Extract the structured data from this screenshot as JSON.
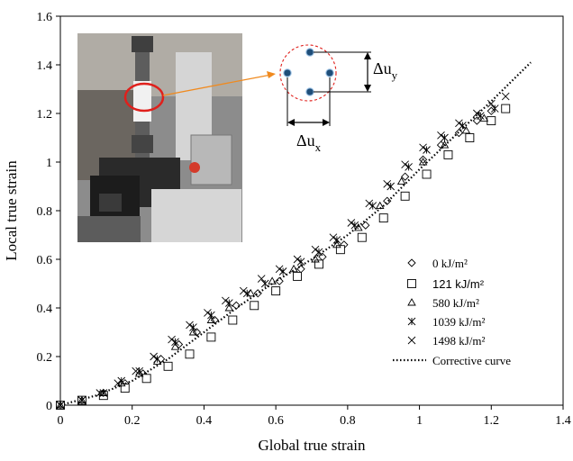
{
  "chart_data": {
    "type": "scatter",
    "xlabel": "Global  true strain",
    "ylabel": "Local true strain",
    "xlim": [
      0,
      1.4
    ],
    "ylim": [
      0,
      1.6
    ],
    "x_ticks": [
      "0",
      "0.2",
      "0.4",
      "0.6",
      "0.8",
      "1",
      "1.2",
      "1.4"
    ],
    "y_ticks": [
      "0",
      "0.2",
      "0.4",
      "0.6",
      "0.8",
      "1",
      "1.2",
      "1.4",
      "1.6"
    ],
    "grid": false,
    "legend_position": "bottom-right",
    "series": [
      {
        "name": "0 kJ/m²",
        "marker": "diamond",
        "x": [
          0,
          0.06,
          0.12,
          0.18,
          0.23,
          0.28,
          0.33,
          0.38,
          0.43,
          0.49,
          0.55,
          0.61,
          0.67,
          0.73,
          0.79,
          0.85,
          0.91,
          0.96,
          1.01,
          1.06,
          1.11,
          1.16,
          1.2
        ],
        "y": [
          0,
          0.02,
          0.05,
          0.09,
          0.13,
          0.19,
          0.25,
          0.3,
          0.35,
          0.41,
          0.46,
          0.51,
          0.56,
          0.61,
          0.66,
          0.74,
          0.84,
          0.94,
          1.01,
          1.07,
          1.12,
          1.17,
          1.21
        ]
      },
      {
        "name": "121 kJ/m²",
        "marker": "square",
        "x": [
          0,
          0.06,
          0.12,
          0.18,
          0.24,
          0.3,
          0.36,
          0.42,
          0.48,
          0.54,
          0.6,
          0.66,
          0.72,
          0.78,
          0.84,
          0.9,
          0.96,
          1.02,
          1.08,
          1.14,
          1.2,
          1.24
        ],
        "y": [
          0,
          0.02,
          0.04,
          0.07,
          0.11,
          0.16,
          0.21,
          0.28,
          0.35,
          0.41,
          0.47,
          0.53,
          0.58,
          0.64,
          0.69,
          0.77,
          0.86,
          0.95,
          1.03,
          1.1,
          1.17,
          1.22
        ]
      },
      {
        "name": "580 kJ/m²",
        "marker": "triangle",
        "x": [
          0,
          0.06,
          0.12,
          0.17,
          0.22,
          0.27,
          0.32,
          0.37,
          0.42,
          0.47,
          0.53,
          0.59,
          0.65,
          0.71,
          0.77,
          0.83,
          0.89,
          0.95,
          1.01,
          1.07,
          1.13,
          1.18
        ],
        "y": [
          0,
          0.02,
          0.05,
          0.09,
          0.13,
          0.18,
          0.24,
          0.3,
          0.35,
          0.4,
          0.46,
          0.51,
          0.56,
          0.6,
          0.66,
          0.73,
          0.82,
          0.92,
          1.0,
          1.07,
          1.13,
          1.18
        ]
      },
      {
        "name": "1039 kJ/m²",
        "marker": "star",
        "x": [
          0,
          0.06,
          0.12,
          0.17,
          0.22,
          0.27,
          0.32,
          0.37,
          0.42,
          0.47,
          0.52,
          0.57,
          0.62,
          0.67,
          0.72,
          0.77,
          0.82,
          0.87,
          0.92,
          0.97,
          1.02,
          1.07,
          1.12,
          1.17,
          1.21
        ],
        "y": [
          0,
          0.02,
          0.05,
          0.1,
          0.14,
          0.19,
          0.26,
          0.32,
          0.37,
          0.42,
          0.46,
          0.5,
          0.55,
          0.59,
          0.63,
          0.68,
          0.74,
          0.82,
          0.9,
          0.98,
          1.05,
          1.1,
          1.15,
          1.19,
          1.22
        ]
      },
      {
        "name": "1498 kJ/m²",
        "marker": "x",
        "x": [
          0,
          0.06,
          0.11,
          0.16,
          0.21,
          0.26,
          0.31,
          0.36,
          0.41,
          0.46,
          0.51,
          0.56,
          0.61,
          0.66,
          0.71,
          0.76,
          0.81,
          0.86,
          0.91,
          0.96,
          1.01,
          1.06,
          1.11,
          1.16,
          1.2,
          1.24
        ],
        "y": [
          0,
          0.02,
          0.05,
          0.09,
          0.14,
          0.2,
          0.27,
          0.33,
          0.38,
          0.43,
          0.47,
          0.52,
          0.56,
          0.6,
          0.64,
          0.69,
          0.75,
          0.83,
          0.91,
          0.99,
          1.06,
          1.11,
          1.16,
          1.2,
          1.24,
          1.27
        ]
      }
    ],
    "corrective_curve": {
      "name": "Corrective curve",
      "style": "dotted",
      "x": [
        0,
        0.1,
        0.2,
        0.3,
        0.4,
        0.5,
        0.6,
        0.7,
        0.8,
        0.9,
        1.0,
        1.1,
        1.2,
        1.31
      ],
      "y": [
        0,
        0.04,
        0.1,
        0.19,
        0.3,
        0.41,
        0.51,
        0.6,
        0.7,
        0.82,
        0.97,
        1.11,
        1.25,
        1.41
      ]
    },
    "inset": {
      "type": "photo-with-schematic",
      "annotations": [
        "Δu",
        "y",
        "Δu",
        "x"
      ],
      "colors": {
        "highlight": "#e0201c",
        "arrow": "#f08a1f",
        "dot": "#1f4e79"
      }
    }
  }
}
